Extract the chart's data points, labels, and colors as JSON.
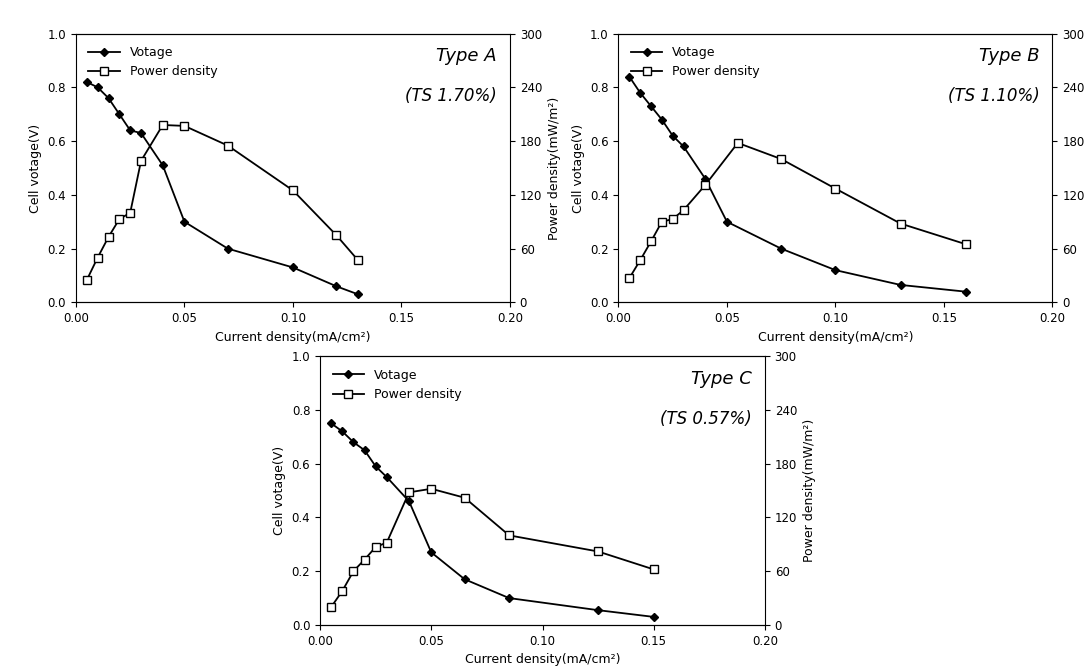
{
  "panels": [
    {
      "title": "Type A",
      "subtitle": "(TS 1.70%)",
      "voltage_x": [
        0.005,
        0.01,
        0.015,
        0.02,
        0.025,
        0.03,
        0.04,
        0.05,
        0.07,
        0.1,
        0.12,
        0.13
      ],
      "voltage_y": [
        0.82,
        0.8,
        0.76,
        0.7,
        0.64,
        0.63,
        0.51,
        0.3,
        0.2,
        0.13,
        0.06,
        0.03
      ],
      "power_x": [
        0.005,
        0.01,
        0.015,
        0.02,
        0.025,
        0.03,
        0.04,
        0.05,
        0.07,
        0.1,
        0.12,
        0.13
      ],
      "power_y": [
        25,
        50,
        73,
        93,
        100,
        158,
        198,
        197,
        175,
        125,
        75,
        47
      ],
      "xlim": [
        0,
        0.2
      ],
      "ylim_left": [
        0,
        1.0
      ],
      "ylim_right": [
        0,
        300
      ]
    },
    {
      "title": "Type B",
      "subtitle": "(TS 1.10%)",
      "voltage_x": [
        0.005,
        0.01,
        0.015,
        0.02,
        0.025,
        0.03,
        0.04,
        0.05,
        0.075,
        0.1,
        0.13,
        0.16
      ],
      "voltage_y": [
        0.84,
        0.78,
        0.73,
        0.68,
        0.62,
        0.58,
        0.46,
        0.3,
        0.2,
        0.12,
        0.065,
        0.04
      ],
      "power_x": [
        0.005,
        0.01,
        0.015,
        0.02,
        0.025,
        0.03,
        0.04,
        0.055,
        0.075,
        0.1,
        0.13,
        0.16
      ],
      "power_y": [
        27,
        47,
        68,
        90,
        93,
        103,
        131,
        178,
        160,
        127,
        88,
        65
      ],
      "xlim": [
        0,
        0.2
      ],
      "ylim_left": [
        0,
        1.0
      ],
      "ylim_right": [
        0,
        300
      ]
    },
    {
      "title": "Type C",
      "subtitle": "(TS 0.57%)",
      "voltage_x": [
        0.005,
        0.01,
        0.015,
        0.02,
        0.025,
        0.03,
        0.04,
        0.05,
        0.065,
        0.085,
        0.125,
        0.15
      ],
      "voltage_y": [
        0.75,
        0.72,
        0.68,
        0.65,
        0.59,
        0.55,
        0.46,
        0.27,
        0.17,
        0.1,
        0.055,
        0.03
      ],
      "power_x": [
        0.005,
        0.01,
        0.015,
        0.02,
        0.025,
        0.03,
        0.04,
        0.05,
        0.065,
        0.085,
        0.125,
        0.15
      ],
      "power_y": [
        20,
        38,
        60,
        73,
        87,
        92,
        148,
        152,
        142,
        100,
        82,
        62
      ],
      "xlim": [
        0,
        0.2
      ],
      "ylim_left": [
        0,
        1.0
      ],
      "ylim_right": [
        0,
        300
      ]
    }
  ],
  "xlabel": "Current density(mA/cm²)",
  "ylabel_left": "Cell votage(V)",
  "ylabel_right": "Power density(mW/m²)",
  "legend_voltage": "Votage",
  "legend_power": "Power density",
  "bg_color": "#ffffff",
  "title_fontsize": 13,
  "subtitle_fontsize": 12,
  "label_fontsize": 9,
  "tick_fontsize": 8.5,
  "legend_fontsize": 9
}
